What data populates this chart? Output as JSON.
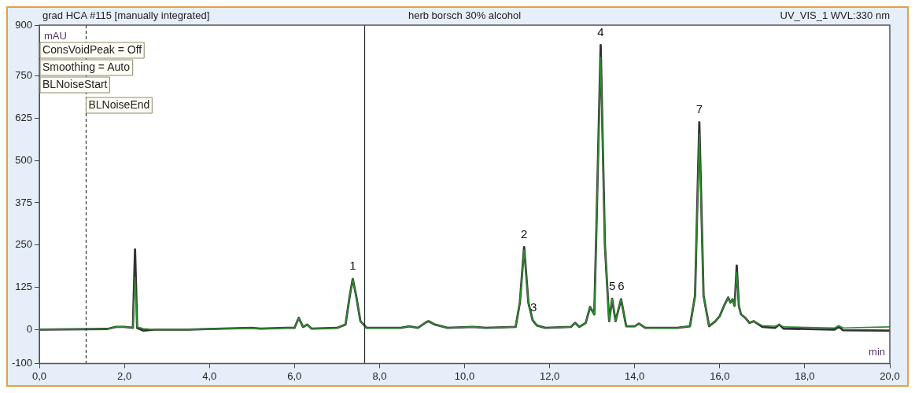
{
  "chart_data": {
    "type": "line",
    "title": "herb borsch 30% alcohol",
    "xlabel": "min",
    "ylabel": "mAU",
    "x": [
      0,
      1.6,
      1.8,
      2.0,
      2.2,
      2.25,
      2.3,
      2.45,
      2.7,
      3.5,
      5.0,
      5.2,
      5.8,
      6.0,
      6.1,
      6.2,
      6.3,
      6.4,
      7.0,
      7.2,
      7.3,
      7.37,
      7.45,
      7.55,
      7.7,
      8.5,
      8.7,
      8.9,
      9.1,
      9.15,
      9.3,
      9.6,
      10.2,
      10.5,
      11.2,
      11.3,
      11.4,
      11.5,
      11.6,
      11.7,
      11.9,
      12.5,
      12.6,
      12.7,
      12.85,
      12.95,
      13.05,
      13.1,
      13.2,
      13.3,
      13.4,
      13.47,
      13.55,
      13.68,
      13.8,
      14.0,
      14.1,
      14.25,
      15.0,
      15.3,
      15.42,
      15.52,
      15.62,
      15.75,
      15.9,
      16.0,
      16.1,
      16.2,
      16.25,
      16.3,
      16.35,
      16.4,
      16.45,
      16.5,
      16.6,
      16.7,
      16.8,
      17.0,
      17.3,
      17.4,
      17.5,
      18.7,
      18.8,
      18.9,
      20.0
    ],
    "series": [
      {
        "color": "#333333",
        "values": [
          0,
          2,
          8,
          8,
          5,
          237,
          5,
          -3,
          0,
          0,
          5,
          3,
          5,
          5,
          35,
          8,
          15,
          3,
          5,
          15,
          100,
          150,
          100,
          25,
          5,
          5,
          10,
          5,
          22,
          25,
          15,
          5,
          8,
          5,
          8,
          80,
          244,
          80,
          28,
          12,
          5,
          8,
          20,
          8,
          20,
          67,
          45,
          300,
          841,
          250,
          25,
          91,
          25,
          90,
          10,
          10,
          18,
          5,
          5,
          10,
          100,
          613,
          100,
          10,
          25,
          40,
          70,
          95,
          80,
          90,
          70,
          189,
          70,
          45,
          35,
          20,
          25,
          8,
          5,
          15,
          3,
          0,
          8,
          -2,
          -3
        ]
      },
      {
        "color": "#2e8b2e",
        "values": [
          0,
          2,
          8,
          8,
          5,
          155,
          8,
          3,
          0,
          0,
          5,
          3,
          5,
          5,
          35,
          8,
          15,
          3,
          5,
          15,
          100,
          150,
          100,
          25,
          5,
          5,
          10,
          5,
          22,
          25,
          15,
          5,
          8,
          5,
          8,
          80,
          235,
          80,
          28,
          12,
          5,
          8,
          20,
          8,
          20,
          67,
          45,
          300,
          805,
          250,
          25,
          91,
          25,
          90,
          10,
          10,
          18,
          5,
          5,
          10,
          100,
          578,
          100,
          10,
          25,
          40,
          70,
          95,
          80,
          90,
          70,
          170,
          70,
          45,
          35,
          20,
          25,
          12,
          10,
          15,
          8,
          5,
          12,
          5,
          8
        ]
      }
    ],
    "xlim": [
      0,
      20
    ],
    "xticks": [
      {
        "value": 0,
        "label": "0,0"
      },
      {
        "value": 2,
        "label": "2,0"
      },
      {
        "value": 4,
        "label": "4,0"
      },
      {
        "value": 6,
        "label": "6,0"
      },
      {
        "value": 8,
        "label": "8,0"
      },
      {
        "value": 10,
        "label": "10,0"
      },
      {
        "value": 12,
        "label": "12,0"
      },
      {
        "value": 14,
        "label": "14,0"
      },
      {
        "value": 16,
        "label": "16,0"
      },
      {
        "value": 18,
        "label": "18,0"
      },
      {
        "value": 20,
        "label": "20,0"
      }
    ],
    "ylim": [
      -100,
      900
    ],
    "yticks": [
      -100,
      0,
      125,
      250,
      375,
      500,
      625,
      750,
      900
    ],
    "ref_lines": [
      {
        "axis": "x",
        "value": 1.1,
        "color": "#333333",
        "line_style": "dashed"
      },
      {
        "axis": "x",
        "value": 7.65,
        "color": "#222222",
        "line_style": "solid"
      }
    ],
    "annotations": [
      "grad HCA #115 [manually integrated]",
      "UV_VIS_1 WVL:330 nm",
      "ConsVoidPeak = Off",
      "Smoothing = Auto",
      "BLNoiseStart",
      "BLNoiseEnd",
      {
        "text": "1",
        "x": 7.37,
        "y": 150
      },
      {
        "text": "2",
        "x": 11.4,
        "y": 244
      },
      {
        "text": "3",
        "x": 11.62,
        "y": 28
      },
      {
        "text": "4",
        "x": 13.2,
        "y": 841
      },
      {
        "text": "5",
        "x": 13.47,
        "y": 91
      },
      {
        "text": "6",
        "x": 13.68,
        "y": 90
      },
      {
        "text": "7",
        "x": 15.52,
        "y": 613
      }
    ],
    "grid": false,
    "legend": false,
    "marker": "none",
    "line_style": "solid"
  }
}
